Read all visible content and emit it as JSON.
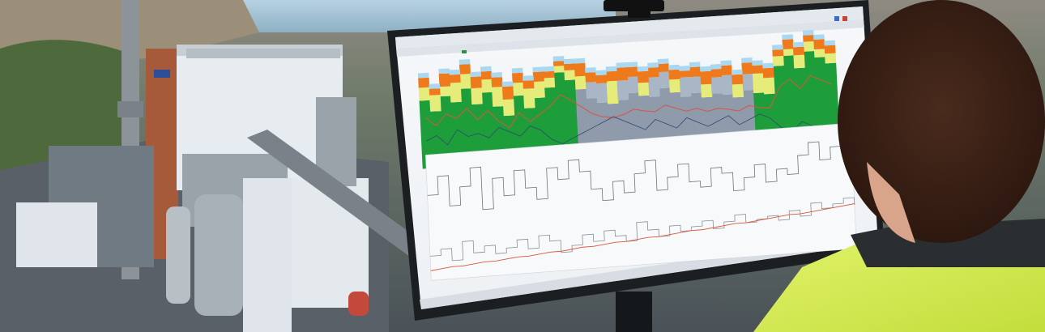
{
  "scene": {
    "description_colors": {
      "sky": "#9fc3d8",
      "plant_white": "#e8eef2",
      "chimney": "#8c9399",
      "brick": "#a65a3a",
      "monitor_bezel": "#1c1f22",
      "vest": "#d9ef5a",
      "hair": "#3a2218"
    }
  },
  "monitor": {
    "app_title": "",
    "toolbar_items": [
      "",
      "",
      "",
      ""
    ]
  },
  "chart_data": [
    {
      "type": "area",
      "title": "",
      "xlabel": "",
      "ylabel": "",
      "colors": [
        "#1e9e3a",
        "#8f9aab",
        "#e5ec7a",
        "#ef7a1c",
        "#a9d8f0"
      ],
      "grid": false,
      "legend": "none",
      "x": [
        0,
        1,
        2,
        3,
        4,
        5,
        6,
        7,
        8,
        9,
        10,
        11,
        12,
        13,
        14,
        15,
        16,
        17,
        18,
        19,
        20,
        21,
        22,
        23,
        24,
        25,
        26,
        27,
        28,
        29,
        30,
        31,
        32,
        33,
        34,
        35,
        36,
        37,
        38,
        39
      ],
      "series": [
        {
          "values": [
            42,
            35,
            44,
            40,
            48,
            38,
            45,
            36,
            30,
            42,
            34,
            40,
            46,
            55,
            50,
            44,
            38,
            35,
            34,
            36,
            40,
            38,
            37,
            42,
            39,
            36,
            38,
            35,
            37,
            36,
            34,
            38,
            36,
            35,
            52,
            58,
            50,
            60,
            56,
            52
          ]
        },
        {
          "values": [
            8,
            10,
            6,
            12,
            9,
            10,
            8,
            12,
            10,
            8,
            12,
            10,
            6,
            4,
            6,
            8,
            10,
            12,
            14,
            12,
            10,
            8,
            12,
            10,
            8,
            12,
            10,
            8,
            10,
            12,
            8,
            10,
            12,
            10,
            6,
            4,
            8,
            6,
            5,
            6
          ]
        },
        {
          "values": [
            6,
            4,
            8,
            5,
            6,
            7,
            5,
            6,
            8,
            6,
            5,
            6,
            4,
            3,
            4,
            8,
            6,
            5,
            6,
            8,
            6,
            7,
            6,
            5,
            6,
            4,
            6,
            8,
            5,
            6,
            6,
            7,
            5,
            6,
            4,
            6,
            5,
            4,
            6,
            5
          ]
        }
      ]
    },
    {
      "type": "line",
      "title": "",
      "xlabel": "",
      "ylabel": "",
      "grid": false,
      "legend": "none",
      "x": [
        0,
        1,
        2,
        3,
        4,
        5,
        6,
        7,
        8,
        9,
        10,
        11,
        12,
        13,
        14,
        15,
        16,
        17,
        18,
        19,
        20,
        21,
        22,
        23,
        24,
        25,
        26,
        27,
        28,
        29,
        30,
        31,
        32,
        33,
        34,
        35,
        36,
        37,
        38,
        39
      ],
      "series": [
        {
          "values": [
            70,
            85,
            60,
            75,
            90,
            55,
            80,
            65,
            85,
            70,
            60,
            85,
            75,
            90,
            80,
            65,
            55,
            70,
            60,
            75,
            85,
            60,
            70,
            80,
            65,
            60,
            75,
            70,
            55,
            65,
            75,
            60,
            70,
            65,
            80,
            90,
            75,
            85,
            95,
            80
          ]
        },
        {
          "values": [
            20,
            25,
            15,
            30,
            20,
            25,
            18,
            22,
            28,
            20,
            30,
            25,
            15,
            20,
            28,
            22,
            30,
            25,
            20,
            35,
            28,
            22,
            30,
            25,
            28,
            32,
            25,
            30,
            35,
            28,
            30,
            32,
            28,
            35,
            30,
            40,
            35,
            38,
            42,
            36
          ]
        },
        {
          "values": [
            8,
            9,
            10,
            10,
            11,
            12,
            12,
            13,
            14,
            14,
            15,
            16,
            16,
            17,
            18,
            18,
            19,
            20,
            20,
            21,
            22,
            22,
            23,
            24,
            25,
            25,
            26,
            27,
            28,
            28,
            29,
            30,
            31,
            32,
            32,
            33,
            34,
            35,
            36,
            37
          ]
        }
      ]
    }
  ]
}
